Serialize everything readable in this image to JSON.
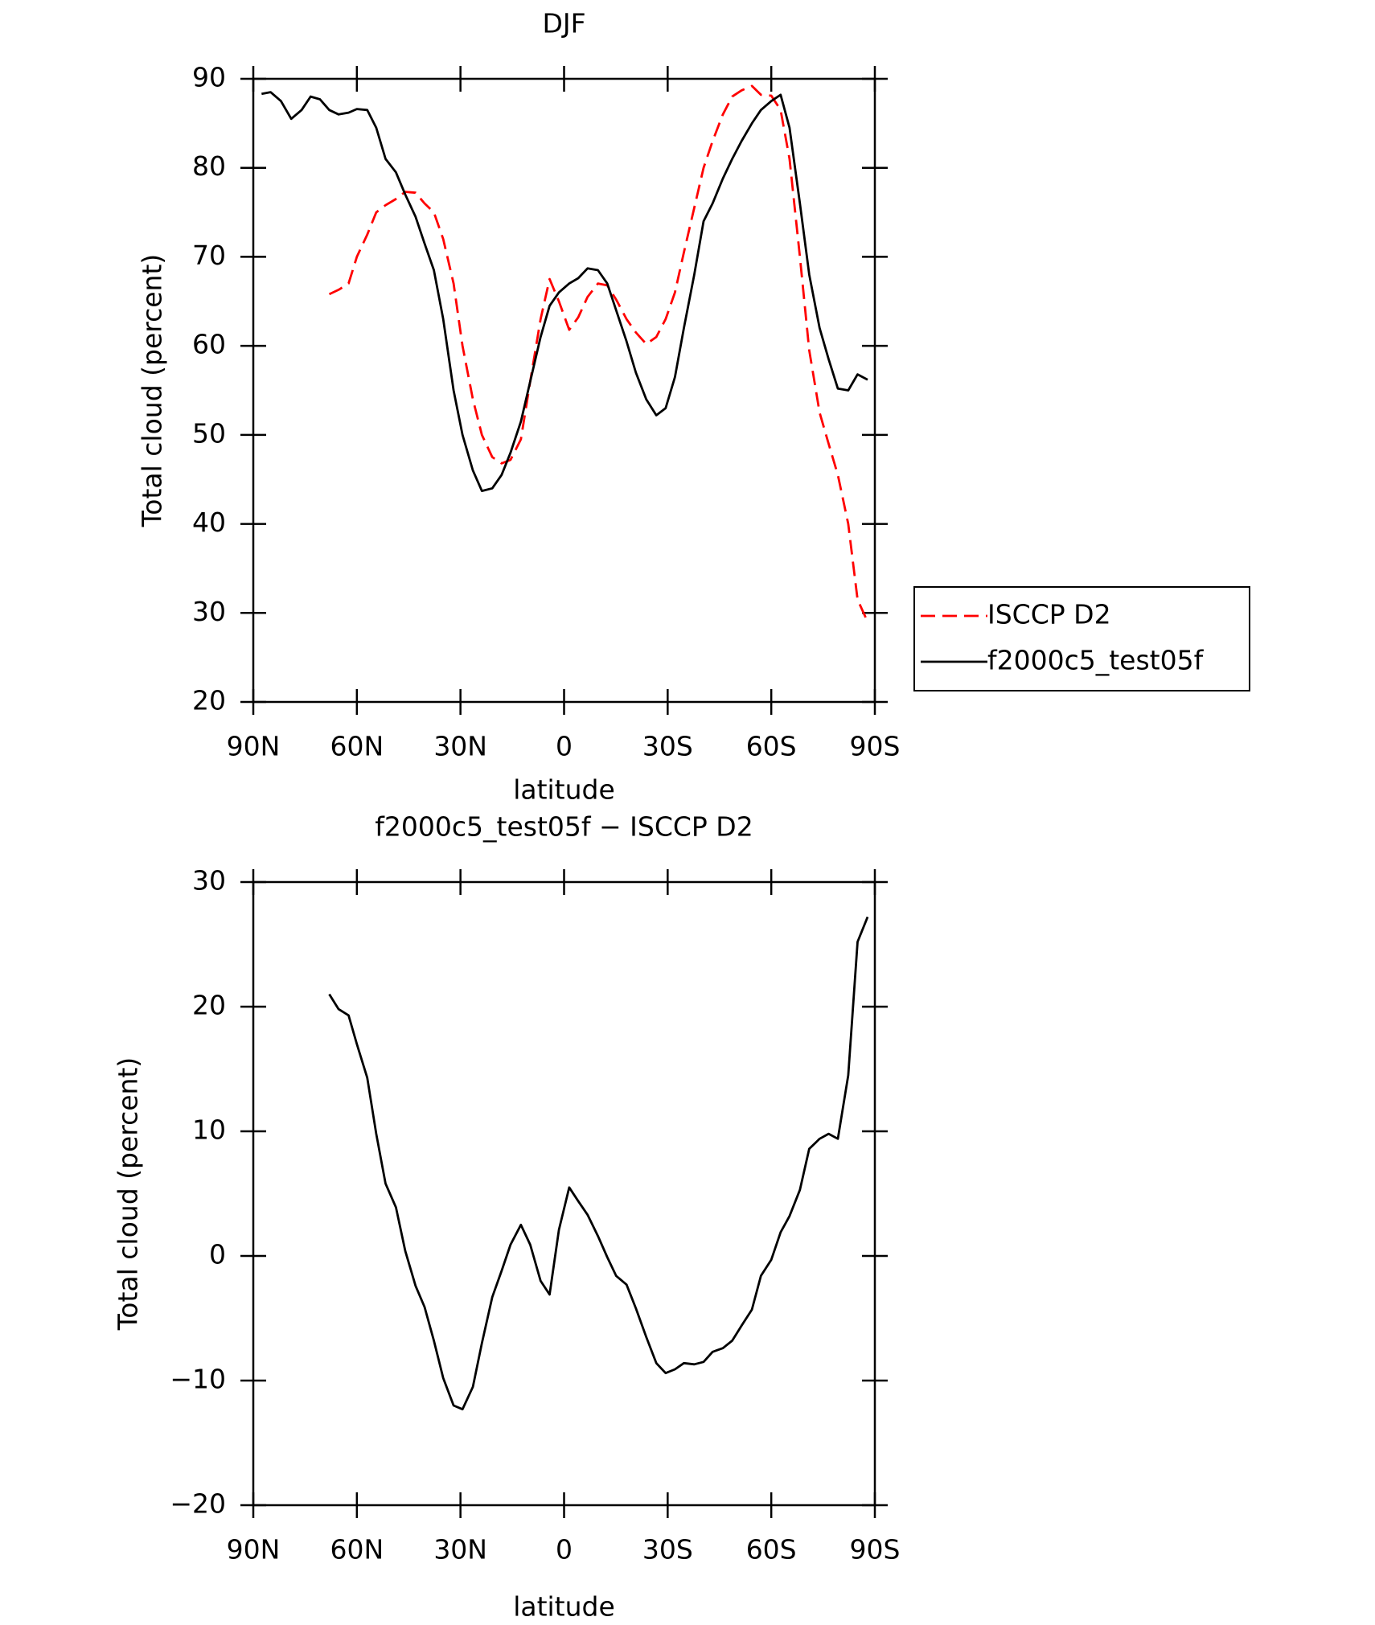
{
  "chart_data": [
    {
      "type": "line",
      "title": "DJF",
      "xlabel": "latitude",
      "ylabel": "Total cloud (percent)",
      "x": [
        87.6,
        85,
        82,
        79,
        76,
        73.4,
        70.7,
        68,
        65.3,
        62.4,
        60,
        57,
        54.4,
        51.7,
        48.7,
        46,
        43,
        40.4,
        37.7,
        35,
        32,
        29.4,
        26.4,
        23.8,
        20.8,
        18.1,
        15.5,
        12.5,
        9.8,
        6.8,
        4.2,
        1.5,
        -1.5,
        -4.1,
        -6.8,
        -9.8,
        -12.5,
        -15.1,
        -18.1,
        -20.8,
        -23.8,
        -26.7,
        -29.4,
        -32.1,
        -34.7,
        -37.7,
        -40.4,
        -43,
        -46,
        -48.7,
        -51.4,
        -54.4,
        -57,
        -60,
        -62.7,
        -65.3,
        -68.3,
        -71,
        -74,
        -76.6,
        -79.3,
        -82.3,
        -85,
        -87.9
      ],
      "xlim": [
        90,
        -90
      ],
      "xticks": [
        {
          "value": 90,
          "label": "90N"
        },
        {
          "value": 60,
          "label": "60N"
        },
        {
          "value": 30,
          "label": "30N"
        },
        0,
        {
          "value": -30,
          "label": "30S"
        },
        {
          "value": -60,
          "label": "60S"
        },
        {
          "value": -90,
          "label": "90S"
        }
      ],
      "ylim": [
        20,
        90
      ],
      "yticks": [
        20,
        30,
        40,
        50,
        60,
        70,
        80,
        90
      ],
      "legend": "right",
      "series": [
        {
          "name": "ISCCP D2",
          "color": "#ff0000",
          "linestyle": "dashed",
          "values": [
            null,
            null,
            null,
            null,
            null,
            null,
            null,
            65.8,
            66.3,
            67,
            70,
            72.5,
            75,
            75.8,
            76.5,
            77.3,
            77.2,
            76,
            75,
            72,
            67,
            60,
            54,
            50,
            47.5,
            46.8,
            47.2,
            49.5,
            56,
            63,
            67.5,
            65,
            61.8,
            63.2,
            65.5,
            67,
            66.8,
            65.2,
            63,
            61.5,
            60.2,
            61,
            63,
            66,
            70.5,
            75.5,
            80,
            83,
            86,
            88,
            88.7,
            89.2,
            88.2,
            88.1,
            86.5,
            81,
            70,
            59.5,
            52.5,
            49,
            45.5,
            40,
            31.5,
            29
          ]
        },
        {
          "name": "f2000c5_test05f",
          "color": "#000000",
          "linestyle": "solid",
          "values": [
            88.3,
            88.5,
            87.5,
            85.5,
            86.5,
            88,
            87.7,
            86.5,
            86,
            86.2,
            86.6,
            86.5,
            84.5,
            81,
            79.5,
            77,
            74.5,
            71.5,
            68.5,
            63,
            55,
            50,
            46,
            43.7,
            44,
            45.5,
            48,
            51.5,
            56,
            61,
            64.5,
            66,
            67,
            67.6,
            68.7,
            68.5,
            67,
            64,
            60.5,
            57,
            54,
            52.2,
            53,
            56.5,
            62,
            68,
            74,
            76,
            78.8,
            81,
            83,
            85,
            86.5,
            87.5,
            88.2,
            84.5,
            76,
            68,
            62,
            58.5,
            55.2,
            55,
            56.8,
            56.2
          ]
        }
      ]
    },
    {
      "type": "line",
      "title": "f2000c5_test05f − ISCCP D2",
      "xlabel": "latitude",
      "ylabel": "Total cloud (percent)",
      "x": [
        87.6,
        85,
        82,
        79,
        76,
        73.4,
        70.7,
        68,
        65.3,
        62.4,
        60,
        57,
        54.4,
        51.7,
        48.7,
        46,
        43,
        40.4,
        37.7,
        35,
        32,
        29.4,
        26.4,
        23.8,
        20.8,
        18.1,
        15.5,
        12.5,
        9.8,
        6.8,
        4.2,
        1.5,
        -1.5,
        -4.1,
        -6.8,
        -9.8,
        -12.5,
        -15.1,
        -18.1,
        -20.8,
        -23.8,
        -26.7,
        -29.4,
        -32.1,
        -34.7,
        -37.7,
        -40.4,
        -43,
        -46,
        -48.7,
        -51.4,
        -54.4,
        -57,
        -60,
        -62.7,
        -65.3,
        -68.3,
        -71,
        -74,
        -76.6,
        -79.3,
        -82.3,
        -85,
        -87.9
      ],
      "xlim": [
        90,
        -90
      ],
      "xticks": [
        {
          "value": 90,
          "label": "90N"
        },
        {
          "value": 60,
          "label": "60N"
        },
        {
          "value": 30,
          "label": "30N"
        },
        0,
        {
          "value": -30,
          "label": "30S"
        },
        {
          "value": -60,
          "label": "60S"
        },
        {
          "value": -90,
          "label": "90S"
        }
      ],
      "ylim": [
        -20,
        30
      ],
      "yticks": [
        {
          "value": -20,
          "label": "−20"
        },
        {
          "value": -10,
          "label": "−10"
        },
        0,
        10,
        20,
        30
      ],
      "series": [
        {
          "color": "#000000",
          "linestyle": "solid",
          "values": [
            null,
            null,
            null,
            null,
            null,
            null,
            null,
            21,
            19.8,
            19.3,
            17,
            14.3,
            9.8,
            5.8,
            3.9,
            0.4,
            -2.4,
            -4.1,
            -6.8,
            -9.8,
            -12,
            -12.3,
            -10.5,
            -7,
            -3.3,
            -1.2,
            0.9,
            2.5,
            0.9,
            -2,
            -3.1,
            2.1,
            5.5,
            4.4,
            3.3,
            1.6,
            -0.1,
            -1.6,
            -2.3,
            -4.2,
            -6.5,
            -8.6,
            -9.4,
            -9.1,
            -8.6,
            -8.7,
            -8.5,
            -7.7,
            -7.4,
            -6.8,
            -5.6,
            -4.3,
            -1.6,
            -0.3,
            1.9,
            3.2,
            5.3,
            8.6,
            9.4,
            9.8,
            9.4,
            14.5,
            25.2,
            27.2
          ]
        }
      ]
    }
  ]
}
